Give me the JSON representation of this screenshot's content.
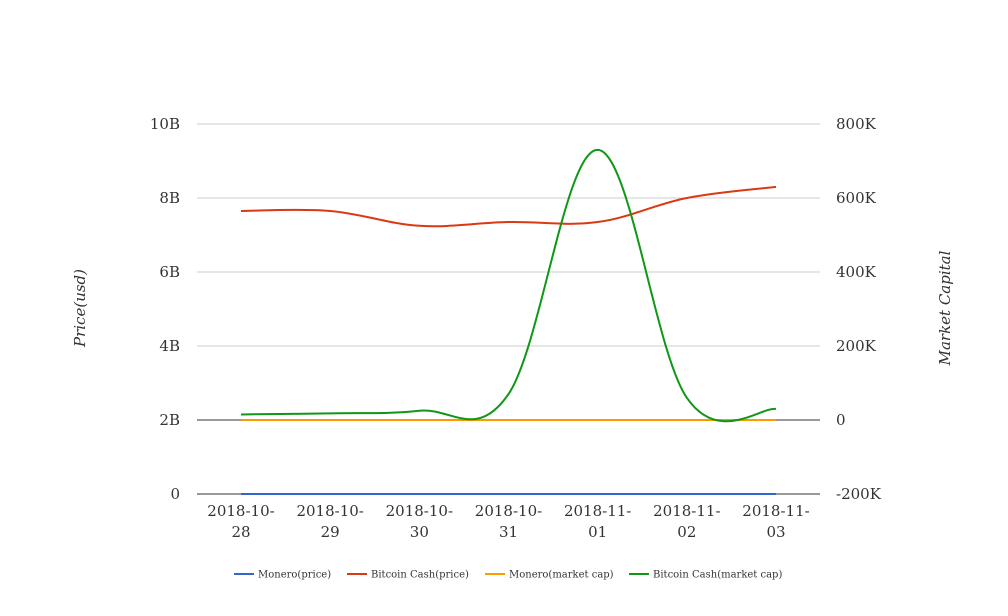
{
  "chart_data": {
    "type": "line",
    "categories": [
      "2018-10-28",
      "2018-10-29",
      "2018-10-30",
      "2018-10-31",
      "2018-11-01",
      "2018-11-02",
      "2018-11-03"
    ],
    "category_lines": [
      [
        "2018-10-",
        "28"
      ],
      [
        "2018-10-",
        "29"
      ],
      [
        "2018-10-",
        "30"
      ],
      [
        "2018-10-",
        "31"
      ],
      [
        "2018-11-",
        "01"
      ],
      [
        "2018-11-",
        "02"
      ],
      [
        "2018-11-",
        "03"
      ]
    ],
    "left_axis": {
      "title": "Price(usd)",
      "min": 0,
      "max": 10000000000,
      "ticks": [
        0,
        2000000000,
        4000000000,
        6000000000,
        8000000000,
        10000000000
      ],
      "tick_labels": [
        "0",
        "2B",
        "4B",
        "6B",
        "8B",
        "10B"
      ]
    },
    "right_axis": {
      "title": "Market Capital",
      "min": -200000,
      "max": 800000,
      "ticks": [
        -200000,
        0,
        200000,
        400000,
        600000,
        800000
      ],
      "tick_labels": [
        "-200K",
        "0",
        "200K",
        "400K",
        "600K",
        "800K"
      ]
    },
    "grid": true,
    "legend_position": "bottom",
    "series": [
      {
        "name": "Monero(price)",
        "axis": "left",
        "color": "#3366cc",
        "values": [
          0,
          0,
          0,
          0,
          0,
          0,
          0
        ]
      },
      {
        "name": "Bitcoin Cash(price)",
        "axis": "left",
        "color": "#dc3912",
        "values": [
          7650000000,
          7650000000,
          7250000000,
          7350000000,
          7350000000,
          8000000000,
          8300000000
        ]
      },
      {
        "name": "Monero(market cap)",
        "axis": "right",
        "color": "#ff9900",
        "values": [
          0,
          0,
          0,
          0,
          0,
          0,
          0
        ]
      },
      {
        "name": "Bitcoin Cash(market cap)",
        "axis": "right",
        "color": "#109618",
        "values": [
          15000,
          18000,
          25000,
          70000,
          730000,
          60000,
          30000
        ]
      }
    ]
  }
}
